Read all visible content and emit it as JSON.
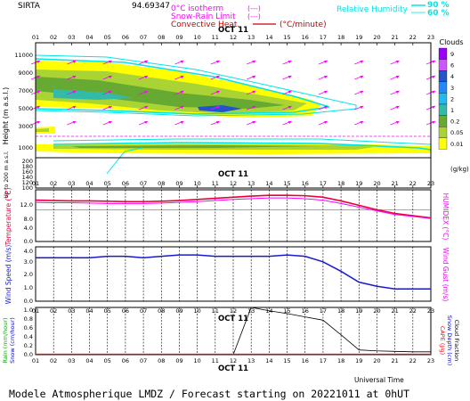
{
  "header": {
    "station": "SIRTA",
    "lonlat": "94.69347",
    "legend_isotherm": "0°C isotherm",
    "legend_isotherm_style": "(---)",
    "legend_snow": "Snow-Rain Limit",
    "legend_snow_style": "(---)",
    "legend_conv": "Convective Heat.",
    "legend_conv_unit": "(°C/minute)",
    "legend_rh": "Relative Humidity",
    "rh_90": "90 %",
    "rh_60": "60 %"
  },
  "footer": {
    "title": "Modele Atmospherique LMDZ / Forecast starting on 20221011 at 0hUT",
    "universal_time": "Universal Time"
  },
  "colors": {
    "isotherm": "#ff00ff",
    "convective": "#cc0000",
    "rh": "#00e5e5",
    "temperature": "#e8003c",
    "humidex": "#ff00ff",
    "wind": "#1a1acc",
    "rain": "#00aa00",
    "snow": "#0000ff",
    "fraction": "#000000",
    "cape": "#ff0000"
  },
  "hours": [
    "01",
    "02",
    "03",
    "04",
    "05",
    "06",
    "07",
    "08",
    "09",
    "10",
    "11",
    "12",
    "13",
    "14",
    "15",
    "16",
    "17",
    "18",
    "19",
    "20",
    "21",
    "22",
    "23"
  ],
  "date_label": "OCT 11",
  "chart_data": [
    {
      "type": "heatmap",
      "name": "clouds",
      "ylabel": "Height (m a.s.l.)",
      "ylabel_low": "Up to 200 m a.s.l.",
      "yticks": [
        "11000",
        "9000",
        "7000",
        "5000",
        "3000",
        "1000",
        "200",
        "180",
        "160",
        "140",
        "120",
        "100"
      ],
      "colorbar_title": "Clouds",
      "colorbar_unit": "(g/kg)",
      "colorbar_labels": [
        "9",
        "6",
        "4",
        "3",
        "2",
        "1",
        "0.2",
        "0.05",
        "0.01"
      ],
      "colorbar_colors": [
        "#9900ff",
        "#cc55ff",
        "#2255cc",
        "#2288ff",
        "#22bbee",
        "#33bbaa",
        "#66aa33",
        "#aad433",
        "#ffff00"
      ]
    },
    {
      "type": "line",
      "name": "temperature",
      "ylabel": "Temperature (°C)",
      "ylabel_right": "HUMIDEX (°C)",
      "ylim": [
        0,
        14
      ],
      "yticks": [
        "12.0",
        "8.0",
        "4.0",
        "0.0"
      ],
      "x": [
        1,
        2,
        3,
        4,
        5,
        6,
        7,
        8,
        9,
        10,
        11,
        12,
        13,
        14,
        15,
        16,
        17,
        18,
        19,
        20,
        21,
        22,
        23
      ],
      "series": [
        {
          "values": [
            11.2,
            11.1,
            11.0,
            11.0,
            10.9,
            10.8,
            10.8,
            10.9,
            11.1,
            11.4,
            11.7,
            12.0,
            12.3,
            12.5,
            12.5,
            12.4,
            12.0,
            11.0,
            9.8,
            8.6,
            7.6,
            7.0,
            6.4
          ]
        },
        {
          "values": [
            10.6,
            10.5,
            10.5,
            10.4,
            10.3,
            10.3,
            10.3,
            10.4,
            10.6,
            10.8,
            11.1,
            11.4,
            11.6,
            11.8,
            11.8,
            11.6,
            11.2,
            10.3,
            9.3,
            8.3,
            7.3,
            6.8,
            6.2
          ]
        }
      ]
    },
    {
      "type": "line",
      "name": "wind",
      "ylabel": "Wind Speed (m/s)",
      "ylabel_right": "Wind Gust (m/s)",
      "ylim": [
        0,
        4.0
      ],
      "yticks": [
        "4.0",
        "3.0",
        "2.0",
        "1.0",
        "0.0"
      ],
      "x": [
        1,
        2,
        3,
        4,
        5,
        6,
        7,
        8,
        9,
        10,
        11,
        12,
        13,
        14,
        15,
        16,
        17,
        18,
        19,
        20,
        21,
        22,
        23
      ],
      "series": [
        {
          "values": [
            3.2,
            3.2,
            3.2,
            3.2,
            3.3,
            3.3,
            3.2,
            3.3,
            3.4,
            3.4,
            3.3,
            3.3,
            3.3,
            3.3,
            3.4,
            3.3,
            2.9,
            2.2,
            1.4,
            1.1,
            0.9,
            0.9,
            0.9
          ]
        }
      ]
    },
    {
      "type": "line",
      "name": "precip",
      "ylabel_left": [
        "Rain (mm/hour)",
        "Snow (cm/hour)"
      ],
      "ylabel_right": [
        "CAPE (J/g)",
        "Snow Depth (cm)",
        "Cloud Fraction"
      ],
      "ylim": [
        0,
        1.0
      ],
      "yticks": [
        "1.0",
        "0.8",
        "0.6",
        "0.4",
        "0.2",
        "0.0"
      ],
      "x": [
        1,
        2,
        3,
        4,
        5,
        6,
        7,
        8,
        9,
        10,
        11,
        12,
        13,
        14,
        15,
        16,
        17,
        18,
        19,
        20,
        21,
        22,
        23
      ],
      "series": [
        {
          "values": [
            0,
            0,
            0,
            0,
            0,
            0,
            0,
            0,
            0,
            0,
            0,
            0,
            1.0,
            0.93,
            0.87,
            0.8,
            0.73,
            0.42,
            0.1,
            0.08,
            0.07,
            0.06,
            0.06
          ]
        },
        {
          "values": [
            0.01,
            0.01,
            0.01,
            0.01,
            0.01,
            0.01,
            0.01,
            0.01,
            0.01,
            0.01,
            0.01,
            0.01,
            0.01,
            0.01,
            0.01,
            0.01,
            0.01,
            0.01,
            0.01,
            0.01,
            0.01,
            0.01,
            0.01
          ]
        }
      ]
    }
  ]
}
